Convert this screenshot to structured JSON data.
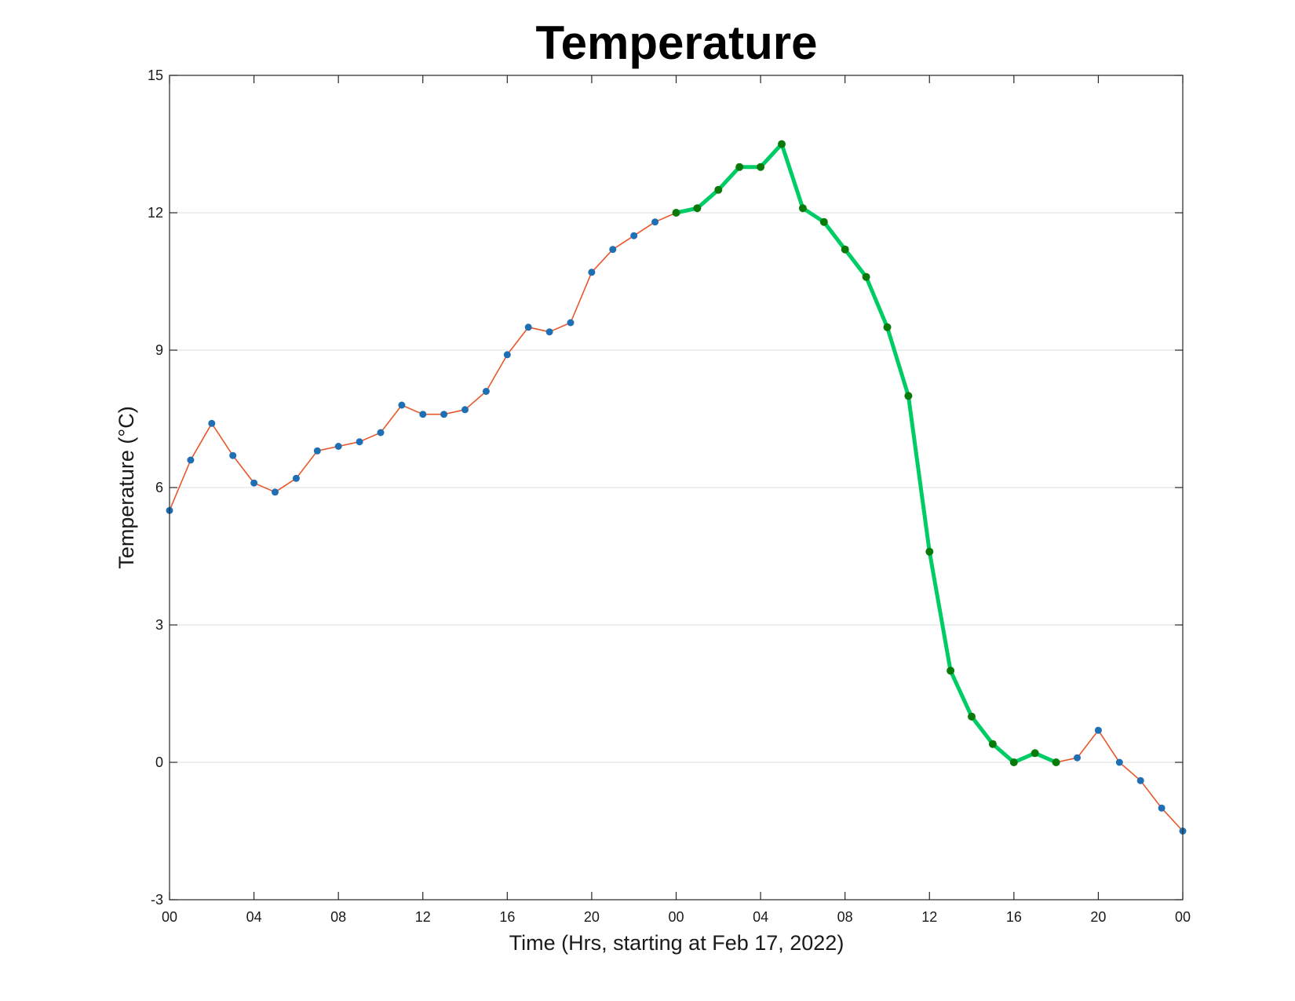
{
  "chart_data": {
    "type": "line",
    "title": "Temperature",
    "xlabel": "Time (Hrs, starting at Feb 17, 2022)",
    "ylabel": "Temperature (°C)",
    "ylim": [
      -3,
      15
    ],
    "yticks": [
      -3,
      0,
      3,
      6,
      9,
      12,
      15
    ],
    "xlim": [
      0,
      48
    ],
    "xticks": [
      0,
      4,
      8,
      12,
      16,
      20,
      24,
      28,
      32,
      36,
      40,
      44,
      48
    ],
    "xtick_labels": [
      "00",
      "04",
      "08",
      "12",
      "16",
      "20",
      "00",
      "04",
      "08",
      "12",
      "16",
      "20",
      "00"
    ],
    "grid": "horizontal",
    "series": [
      {
        "line_color": "#e8572a",
        "marker_color": "#1f6fb5",
        "x": [
          0,
          1,
          2,
          3,
          4,
          5,
          6,
          7,
          8,
          9,
          10,
          11,
          12,
          13,
          14,
          15,
          16,
          17,
          18,
          19,
          20,
          21,
          22,
          23,
          24,
          25,
          26,
          27,
          28,
          29,
          30,
          31,
          32,
          33,
          34,
          35,
          36,
          37,
          38,
          39,
          40,
          41,
          42,
          43,
          44,
          45,
          46,
          47,
          48
        ],
        "y": [
          5.5,
          6.6,
          7.4,
          6.7,
          6.1,
          5.9,
          6.2,
          6.8,
          6.9,
          7.0,
          7.2,
          7.8,
          7.6,
          7.6,
          7.7,
          8.1,
          8.9,
          9.5,
          9.4,
          9.6,
          10.7,
          11.2,
          11.5,
          11.8,
          12.0,
          12.1,
          12.5,
          13.0,
          13.0,
          13.5,
          12.1,
          11.8,
          11.2,
          10.6,
          9.5,
          8.0,
          4.6,
          2.0,
          1.0,
          0.4,
          0.0,
          0.2,
          0.0,
          0.1,
          0.7,
          0.0,
          -0.4,
          -1.0,
          -1.5
        ]
      },
      {
        "line_color": "#00cc66",
        "marker_color": "#0a7a0a",
        "x": [
          24,
          25,
          26,
          27,
          28,
          29,
          30,
          31,
          32,
          33,
          34,
          35,
          36,
          37,
          38,
          39,
          40,
          41,
          42
        ],
        "y": [
          12.0,
          12.1,
          12.5,
          13.0,
          13.0,
          13.5,
          12.1,
          11.8,
          11.2,
          10.6,
          9.5,
          8.0,
          4.6,
          2.0,
          1.0,
          0.4,
          0.0,
          0.2,
          0.0
        ]
      }
    ]
  }
}
